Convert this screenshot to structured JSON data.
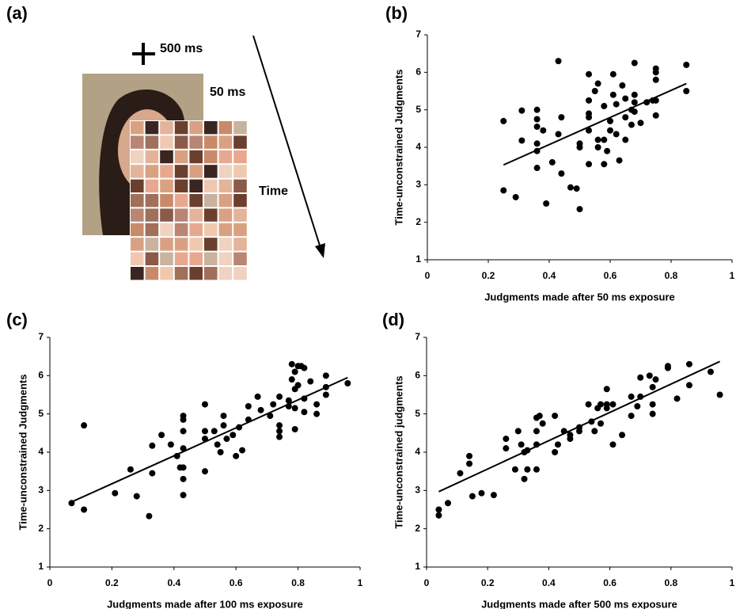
{
  "diagram": {
    "panel_label": "(a)",
    "labels": [
      "500 ms",
      "50 ms",
      "Time"
    ]
  },
  "chart_data": [
    {
      "type": "scatter",
      "panel_label": "(b)",
      "x_label": "Judgments made after 50 ms exposure",
      "y_label": "Time-unconstrained Judgments",
      "xlim": [
        0,
        1
      ],
      "ylim": [
        1,
        7
      ],
      "xticks": [
        0,
        0.2,
        0.4,
        0.6,
        0.8,
        1
      ],
      "yticks": [
        1,
        2,
        3,
        4,
        5,
        6,
        7
      ],
      "color": "#000000",
      "x": [
        0.25,
        0.25,
        0.29,
        0.31,
        0.31,
        0.36,
        0.36,
        0.36,
        0.36,
        0.36,
        0.36,
        0.38,
        0.39,
        0.41,
        0.43,
        0.43,
        0.44,
        0.44,
        0.47,
        0.49,
        0.5,
        0.5,
        0.5,
        0.53,
        0.53,
        0.53,
        0.53,
        0.53,
        0.53,
        0.55,
        0.56,
        0.56,
        0.56,
        0.58,
        0.58,
        0.58,
        0.59,
        0.6,
        0.6,
        0.61,
        0.61,
        0.62,
        0.62,
        0.63,
        0.64,
        0.65,
        0.65,
        0.65,
        0.67,
        0.67,
        0.68,
        0.68,
        0.68,
        0.68,
        0.7,
        0.72,
        0.74,
        0.75,
        0.75,
        0.75,
        0.75,
        0.75,
        0.85,
        0.85
      ],
      "values": [
        4.7,
        2.85,
        2.67,
        4.98,
        4.18,
        5.0,
        4.75,
        4.55,
        4.1,
        3.9,
        3.45,
        4.45,
        2.5,
        3.6,
        6.3,
        4.35,
        4.8,
        3.3,
        2.93,
        2.9,
        2.35,
        4.1,
        4.0,
        5.95,
        5.25,
        4.9,
        4.8,
        4.45,
        3.55,
        5.5,
        5.7,
        4.2,
        4.0,
        5.1,
        4.2,
        3.55,
        3.9,
        4.7,
        4.45,
        5.95,
        5.4,
        5.15,
        4.35,
        3.65,
        5.65,
        5.3,
        4.8,
        4.2,
        5.0,
        4.6,
        6.25,
        5.4,
        5.2,
        4.95,
        4.65,
        5.2,
        5.25,
        6.1,
        6.0,
        5.8,
        5.25,
        4.85,
        6.2,
        5.5
      ],
      "trendline": {
        "x": [
          0.25,
          0.85
        ],
        "values": [
          3.53,
          5.7
        ]
      }
    },
    {
      "type": "scatter",
      "panel_label": "(c)",
      "x_label": "Judgments made after 100 ms exposure",
      "y_label": "Time-unconstrained Judgments",
      "xlim": [
        0,
        1
      ],
      "ylim": [
        1,
        7
      ],
      "xticks": [
        0,
        0.2,
        0.4,
        0.6,
        0.8,
        1
      ],
      "yticks": [
        1,
        2,
        3,
        4,
        5,
        6,
        7
      ],
      "color": "#000000",
      "x": [
        0.07,
        0.11,
        0.11,
        0.21,
        0.26,
        0.28,
        0.32,
        0.33,
        0.33,
        0.36,
        0.39,
        0.41,
        0.42,
        0.43,
        0.43,
        0.43,
        0.43,
        0.43,
        0.43,
        0.43,
        0.5,
        0.5,
        0.5,
        0.5,
        0.53,
        0.54,
        0.55,
        0.56,
        0.56,
        0.57,
        0.59,
        0.6,
        0.61,
        0.62,
        0.64,
        0.64,
        0.67,
        0.68,
        0.71,
        0.72,
        0.74,
        0.74,
        0.74,
        0.74,
        0.77,
        0.77,
        0.78,
        0.78,
        0.79,
        0.79,
        0.79,
        0.79,
        0.8,
        0.8,
        0.81,
        0.82,
        0.82,
        0.82,
        0.84,
        0.86,
        0.86,
        0.89,
        0.89,
        0.89,
        0.96
      ],
      "values": [
        2.67,
        4.7,
        2.5,
        2.93,
        3.55,
        2.85,
        2.33,
        4.17,
        3.45,
        4.45,
        4.2,
        3.9,
        3.6,
        4.95,
        4.85,
        4.55,
        4.1,
        3.6,
        3.3,
        2.88,
        5.25,
        4.55,
        4.35,
        3.5,
        4.55,
        4.2,
        4.0,
        4.95,
        4.7,
        4.35,
        4.45,
        3.9,
        4.65,
        4.05,
        5.2,
        4.85,
        5.45,
        5.1,
        4.95,
        5.25,
        5.45,
        4.7,
        4.55,
        4.4,
        5.35,
        5.2,
        6.3,
        5.9,
        6.1,
        5.65,
        5.15,
        4.6,
        6.25,
        5.75,
        6.25,
        6.2,
        5.4,
        5.05,
        5.85,
        5.25,
        5.0,
        6.0,
        5.7,
        5.5,
        5.8
      ],
      "trendline": {
        "x": [
          0.07,
          0.96
        ],
        "values": [
          2.7,
          5.95
        ]
      }
    },
    {
      "type": "scatter",
      "panel_label": "(d)",
      "x_label": "Judgments made after 500 ms exposure",
      "y_label": "Time-unconstrained judgments",
      "xlim": [
        0,
        1
      ],
      "ylim": [
        1,
        7
      ],
      "xticks": [
        0,
        0.2,
        0.4,
        0.6,
        0.8,
        1
      ],
      "yticks": [
        1,
        2,
        3,
        4,
        5,
        6,
        7
      ],
      "color": "#000000",
      "x": [
        0.04,
        0.04,
        0.07,
        0.11,
        0.14,
        0.14,
        0.15,
        0.18,
        0.22,
        0.26,
        0.26,
        0.29,
        0.3,
        0.31,
        0.32,
        0.32,
        0.33,
        0.33,
        0.36,
        0.36,
        0.36,
        0.36,
        0.37,
        0.38,
        0.42,
        0.42,
        0.43,
        0.45,
        0.47,
        0.47,
        0.5,
        0.5,
        0.53,
        0.54,
        0.55,
        0.56,
        0.57,
        0.57,
        0.59,
        0.59,
        0.59,
        0.61,
        0.61,
        0.64,
        0.67,
        0.67,
        0.69,
        0.7,
        0.7,
        0.73,
        0.74,
        0.74,
        0.74,
        0.75,
        0.79,
        0.79,
        0.82,
        0.86,
        0.86,
        0.93,
        0.96
      ],
      "values": [
        2.5,
        2.35,
        2.67,
        3.45,
        3.9,
        3.7,
        2.85,
        2.93,
        2.88,
        4.35,
        4.1,
        3.55,
        4.55,
        4.2,
        4.0,
        3.3,
        3.55,
        4.05,
        4.9,
        4.55,
        4.2,
        3.55,
        4.95,
        4.75,
        4.95,
        4.0,
        4.2,
        4.55,
        4.35,
        4.45,
        4.65,
        4.55,
        5.25,
        4.8,
        4.55,
        5.15,
        5.25,
        4.75,
        5.65,
        5.25,
        5.15,
        5.25,
        4.2,
        4.45,
        5.45,
        4.95,
        5.2,
        5.45,
        5.95,
        6.0,
        5.7,
        5.25,
        5.0,
        5.9,
        6.25,
        6.2,
        5.4,
        6.3,
        5.75,
        6.1,
        5.5
      ],
      "trendline": {
        "x": [
          0.04,
          0.96
        ],
        "values": [
          2.97,
          6.37
        ]
      }
    }
  ]
}
